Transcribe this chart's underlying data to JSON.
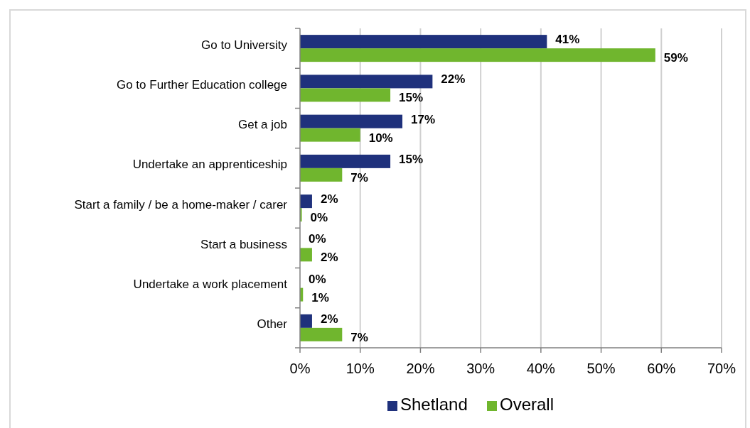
{
  "chart_data": {
    "type": "bar",
    "orientation": "horizontal",
    "categories": [
      "Go to University",
      "Go to Further Education college",
      "Get a job",
      "Undertake an apprenticeship",
      "Start a family / be a home-maker / carer",
      "Start a business",
      "Undertake a work placement",
      "Other"
    ],
    "series": [
      {
        "name": "Shetland",
        "color": "#1f317c",
        "values": [
          41,
          22,
          17,
          15,
          2,
          0,
          0,
          2
        ],
        "value_labels": [
          "41%",
          "22%",
          "17%",
          "15%",
          "2%",
          "0%",
          "0%",
          "2%"
        ]
      },
      {
        "name": "Overall",
        "color": "#70b62e",
        "values": [
          59,
          15,
          10,
          7,
          0.3,
          2,
          0.5,
          7
        ],
        "value_labels": [
          "59%",
          "15%",
          "10%",
          "7%",
          "0%",
          "2%",
          "1%",
          "7%"
        ]
      }
    ],
    "xlim": [
      0,
      70
    ],
    "xticks": [
      {
        "value": 0,
        "label": "0%"
      },
      {
        "value": 10,
        "label": "10%"
      },
      {
        "value": 20,
        "label": "20%"
      },
      {
        "value": 30,
        "label": "30%"
      },
      {
        "value": 40,
        "label": "40%"
      },
      {
        "value": 50,
        "label": "50%"
      },
      {
        "value": 60,
        "label": "60%"
      },
      {
        "value": 70,
        "label": "70%"
      }
    ],
    "grid": "x",
    "legend": "bottom"
  }
}
